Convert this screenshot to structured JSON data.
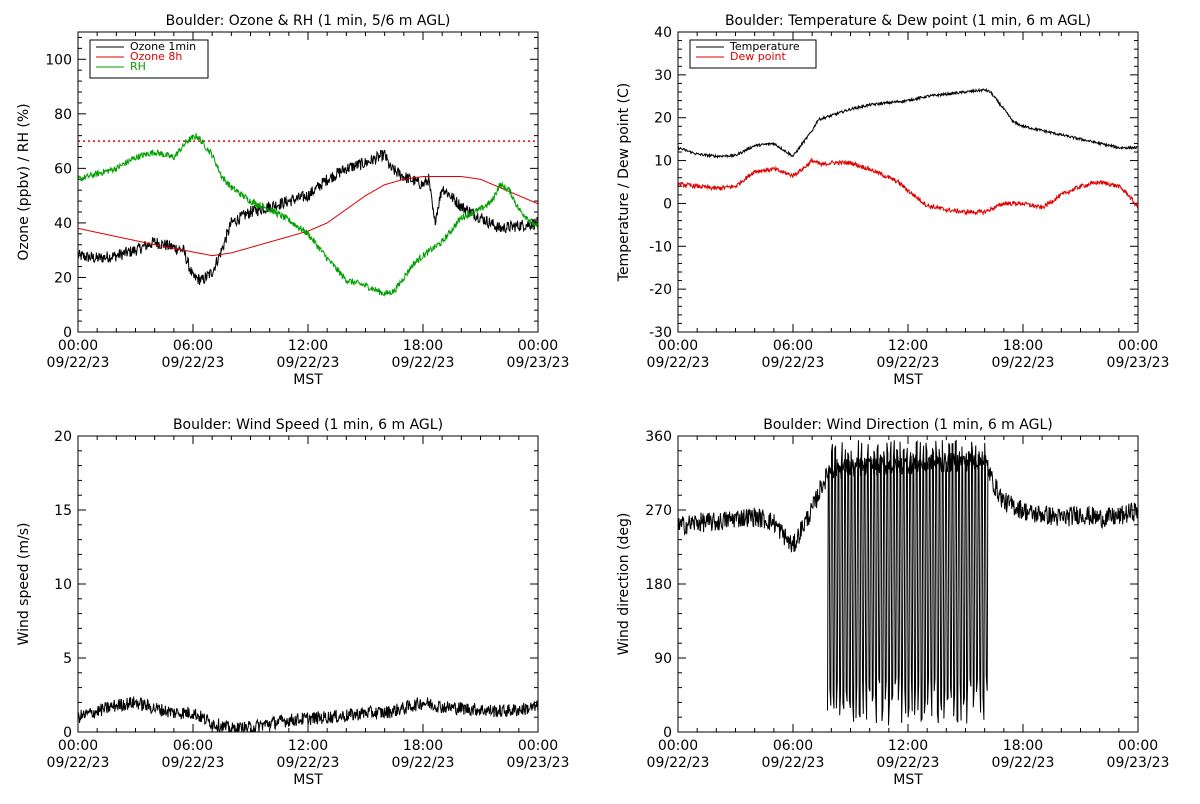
{
  "chart_data": [
    {
      "type": "line",
      "title": "Boulder: Ozone & RH (1 min, 5/6 m AGL)",
      "xlabel": "MST",
      "ylabel": "Ozone (ppbv) / RH (%)",
      "ylim": [
        0,
        110
      ],
      "yticks": [
        0,
        20,
        40,
        60,
        80,
        100
      ],
      "xlim": [
        "09/22/23 00:00",
        "09/23/23 00:00"
      ],
      "xtick_time": [
        "00:00",
        "06:00",
        "12:00",
        "18:00",
        "00:00"
      ],
      "xtick_date": [
        "09/22/23",
        "09/22/23",
        "09/22/23",
        "09/22/23",
        "09/23/23"
      ],
      "legend_position": "top-left",
      "reference_line": {
        "y": 70,
        "color": "#e00000",
        "style": "dotted"
      },
      "series": [
        {
          "name": "Ozone 1min",
          "color": "#000000",
          "noise": 2.2,
          "points": [
            [
              0,
              28
            ],
            [
              1,
              27
            ],
            [
              2,
              28
            ],
            [
              3,
              30
            ],
            [
              4,
              33
            ],
            [
              5,
              31
            ],
            [
              5.5,
              30
            ],
            [
              6,
              20
            ],
            [
              6.5,
              19
            ],
            [
              7,
              22
            ],
            [
              7.5,
              30
            ],
            [
              8,
              40
            ],
            [
              9,
              44
            ],
            [
              10,
              46
            ],
            [
              11,
              48
            ],
            [
              12,
              50
            ],
            [
              13,
              56
            ],
            [
              14,
              60
            ],
            [
              15,
              62
            ],
            [
              16,
              65
            ],
            [
              16.3,
              60
            ],
            [
              17,
              57
            ],
            [
              18,
              54
            ],
            [
              18.3,
              56
            ],
            [
              18.6,
              40
            ],
            [
              19,
              53
            ],
            [
              20,
              46
            ],
            [
              21,
              42
            ],
            [
              22,
              38
            ],
            [
              23,
              39
            ],
            [
              24,
              40
            ]
          ]
        },
        {
          "name": "Ozone 8h",
          "color": "#e00000",
          "noise": 0,
          "points": [
            [
              0,
              38
            ],
            [
              2,
              35
            ],
            [
              4,
              32
            ],
            [
              5.5,
              30
            ],
            [
              7,
              28
            ],
            [
              8,
              29
            ],
            [
              10,
              33
            ],
            [
              12,
              37
            ],
            [
              13,
              40
            ],
            [
              14,
              45
            ],
            [
              15,
              50
            ],
            [
              16,
              54
            ],
            [
              17,
              56
            ],
            [
              18,
              57
            ],
            [
              19,
              57
            ],
            [
              20,
              57
            ],
            [
              21,
              56
            ],
            [
              22,
              53
            ],
            [
              23,
              50
            ],
            [
              24,
              47
            ]
          ]
        },
        {
          "name": "RH",
          "color": "#00a000",
          "noise": 1.2,
          "points": [
            [
              0,
              56
            ],
            [
              1,
              58
            ],
            [
              2,
              60
            ],
            [
              3,
              64
            ],
            [
              4,
              66
            ],
            [
              5,
              64
            ],
            [
              5.7,
              70
            ],
            [
              6.2,
              72
            ],
            [
              7,
              65
            ],
            [
              7.5,
              57
            ],
            [
              8,
              53
            ],
            [
              9,
              48
            ],
            [
              10,
              45
            ],
            [
              11,
              41
            ],
            [
              12,
              36
            ],
            [
              13,
              27
            ],
            [
              14,
              19
            ],
            [
              15,
              17
            ],
            [
              16,
              14
            ],
            [
              16.5,
              15
            ],
            [
              17,
              20
            ],
            [
              17.5,
              25
            ],
            [
              18,
              28
            ],
            [
              19,
              33
            ],
            [
              20,
              42
            ],
            [
              21,
              45
            ],
            [
              21.6,
              48
            ],
            [
              22,
              54
            ],
            [
              22.5,
              52
            ],
            [
              23,
              45
            ],
            [
              24,
              38
            ]
          ]
        }
      ]
    },
    {
      "type": "line",
      "title": "Boulder: Temperature & Dew point (1 min, 6 m AGL)",
      "xlabel": "MST",
      "ylabel": "Temperature / Dew point (C)",
      "ylim": [
        -30,
        40
      ],
      "yticks": [
        -30,
        -20,
        -10,
        0,
        10,
        20,
        30,
        40
      ],
      "xlim": [
        "09/22/23 00:00",
        "09/23/23 00:00"
      ],
      "xtick_time": [
        "00:00",
        "06:00",
        "12:00",
        "18:00",
        "00:00"
      ],
      "xtick_date": [
        "09/22/23",
        "09/22/23",
        "09/22/23",
        "09/22/23",
        "09/23/23"
      ],
      "legend_position": "top-left",
      "series": [
        {
          "name": "Temperature",
          "color": "#000000",
          "noise": 0.3,
          "points": [
            [
              0,
              13
            ],
            [
              1,
              11.5
            ],
            [
              2,
              11
            ],
            [
              3,
              11.2
            ],
            [
              4,
              13.5
            ],
            [
              5,
              14
            ],
            [
              5.5,
              12.5
            ],
            [
              6,
              11
            ],
            [
              6.5,
              14
            ],
            [
              7,
              17
            ],
            [
              7.3,
              19.5
            ],
            [
              8,
              20.5
            ],
            [
              9,
              22
            ],
            [
              10,
              23
            ],
            [
              11,
              23.5
            ],
            [
              12,
              24
            ],
            [
              13,
              25
            ],
            [
              14,
              25.5
            ],
            [
              15,
              26
            ],
            [
              16,
              26.5
            ],
            [
              16.3,
              26
            ],
            [
              17,
              22
            ],
            [
              17.5,
              19
            ],
            [
              18,
              18
            ],
            [
              19,
              17
            ],
            [
              20,
              16
            ],
            [
              21,
              15
            ],
            [
              22,
              14
            ],
            [
              23,
              13
            ],
            [
              24,
              13
            ]
          ]
        },
        {
          "name": "Dew point",
          "color": "#e00000",
          "noise": 0.5,
          "points": [
            [
              0,
              4.5
            ],
            [
              1,
              4
            ],
            [
              2,
              3.5
            ],
            [
              3,
              4
            ],
            [
              4,
              7.5
            ],
            [
              5,
              8
            ],
            [
              6,
              6.5
            ],
            [
              6.5,
              8
            ],
            [
              7,
              10
            ],
            [
              7.5,
              9
            ],
            [
              8,
              9.5
            ],
            [
              9,
              9.5
            ],
            [
              10,
              8
            ],
            [
              11,
              6
            ],
            [
              11.5,
              5
            ],
            [
              12,
              3
            ],
            [
              13,
              -0.5
            ],
            [
              14,
              -1.5
            ],
            [
              15,
              -2
            ],
            [
              16,
              -2
            ],
            [
              16.5,
              -1
            ],
            [
              17,
              0
            ],
            [
              18,
              0
            ],
            [
              19,
              -1
            ],
            [
              20,
              2
            ],
            [
              21,
              4
            ],
            [
              22,
              5
            ],
            [
              23,
              4
            ],
            [
              23.5,
              2
            ],
            [
              24,
              -1
            ]
          ]
        }
      ]
    },
    {
      "type": "line",
      "title": "Boulder: Wind Speed (1 min, 6 m AGL)",
      "xlabel": "MST",
      "ylabel": "Wind speed (m/s)",
      "ylim": [
        0,
        20
      ],
      "yticks": [
        0,
        5,
        10,
        15,
        20
      ],
      "xlim": [
        "09/22/23 00:00",
        "09/23/23 00:00"
      ],
      "xtick_time": [
        "00:00",
        "06:00",
        "12:00",
        "18:00",
        "00:00"
      ],
      "xtick_date": [
        "09/22/23",
        "09/22/23",
        "09/22/23",
        "09/22/23",
        "09/23/23"
      ],
      "series": [
        {
          "color": "#000000",
          "noise": 0.45,
          "points": [
            [
              0,
              1
            ],
            [
              1,
              1.4
            ],
            [
              2,
              1.8
            ],
            [
              3,
              2
            ],
            [
              4,
              1.6
            ],
            [
              5,
              1.3
            ],
            [
              6,
              1.3
            ],
            [
              7,
              0.6
            ],
            [
              8,
              0.2
            ],
            [
              9,
              0.3
            ],
            [
              10,
              0.6
            ],
            [
              11,
              0.8
            ],
            [
              12,
              0.9
            ],
            [
              13,
              1
            ],
            [
              14,
              1.1
            ],
            [
              15,
              1.3
            ],
            [
              16,
              1.3
            ],
            [
              17,
              1.6
            ],
            [
              18,
              2
            ],
            [
              19,
              1.7
            ],
            [
              20,
              1.6
            ],
            [
              21,
              1.5
            ],
            [
              22,
              1.4
            ],
            [
              23,
              1.5
            ],
            [
              24,
              1.7
            ]
          ]
        }
      ]
    },
    {
      "type": "line",
      "title": "Boulder: Wind Direction (1 min, 6 m AGL)",
      "xlabel": "MST",
      "ylabel": "Wind direction (deg)",
      "ylim": [
        0,
        360
      ],
      "yticks": [
        0,
        90,
        180,
        270,
        360
      ],
      "xlim": [
        "09/22/23 00:00",
        "09/23/23 00:00"
      ],
      "xtick_time": [
        "00:00",
        "06:00",
        "12:00",
        "18:00",
        "00:00"
      ],
      "xtick_date": [
        "09/22/23",
        "09/22/23",
        "09/22/23",
        "09/22/23",
        "09/23/23"
      ],
      "series": [
        {
          "color": "#000000",
          "noise": 12,
          "points": [
            [
              0,
              250
            ],
            [
              1,
              255
            ],
            [
              2,
              255
            ],
            [
              3,
              260
            ],
            [
              4,
              262
            ],
            [
              5,
              255
            ],
            [
              6,
              225
            ],
            [
              6.5,
              250
            ],
            [
              7,
              270
            ],
            [
              7.5,
              300
            ],
            [
              8,
              320
            ],
            [
              16,
              330
            ],
            [
              16.5,
              300
            ],
            [
              17,
              280
            ],
            [
              18,
              270
            ],
            [
              18.5,
              265
            ],
            [
              19,
              265
            ],
            [
              20,
              260
            ],
            [
              21,
              265
            ],
            [
              22,
              260
            ],
            [
              23,
              262
            ],
            [
              24,
              270
            ]
          ]
        },
        {
          "color": "#000000",
          "noise": 0,
          "mode": "oscillate",
          "range": [
            7.8,
            16.2
          ],
          "low": 8,
          "high": 355
        }
      ]
    }
  ]
}
